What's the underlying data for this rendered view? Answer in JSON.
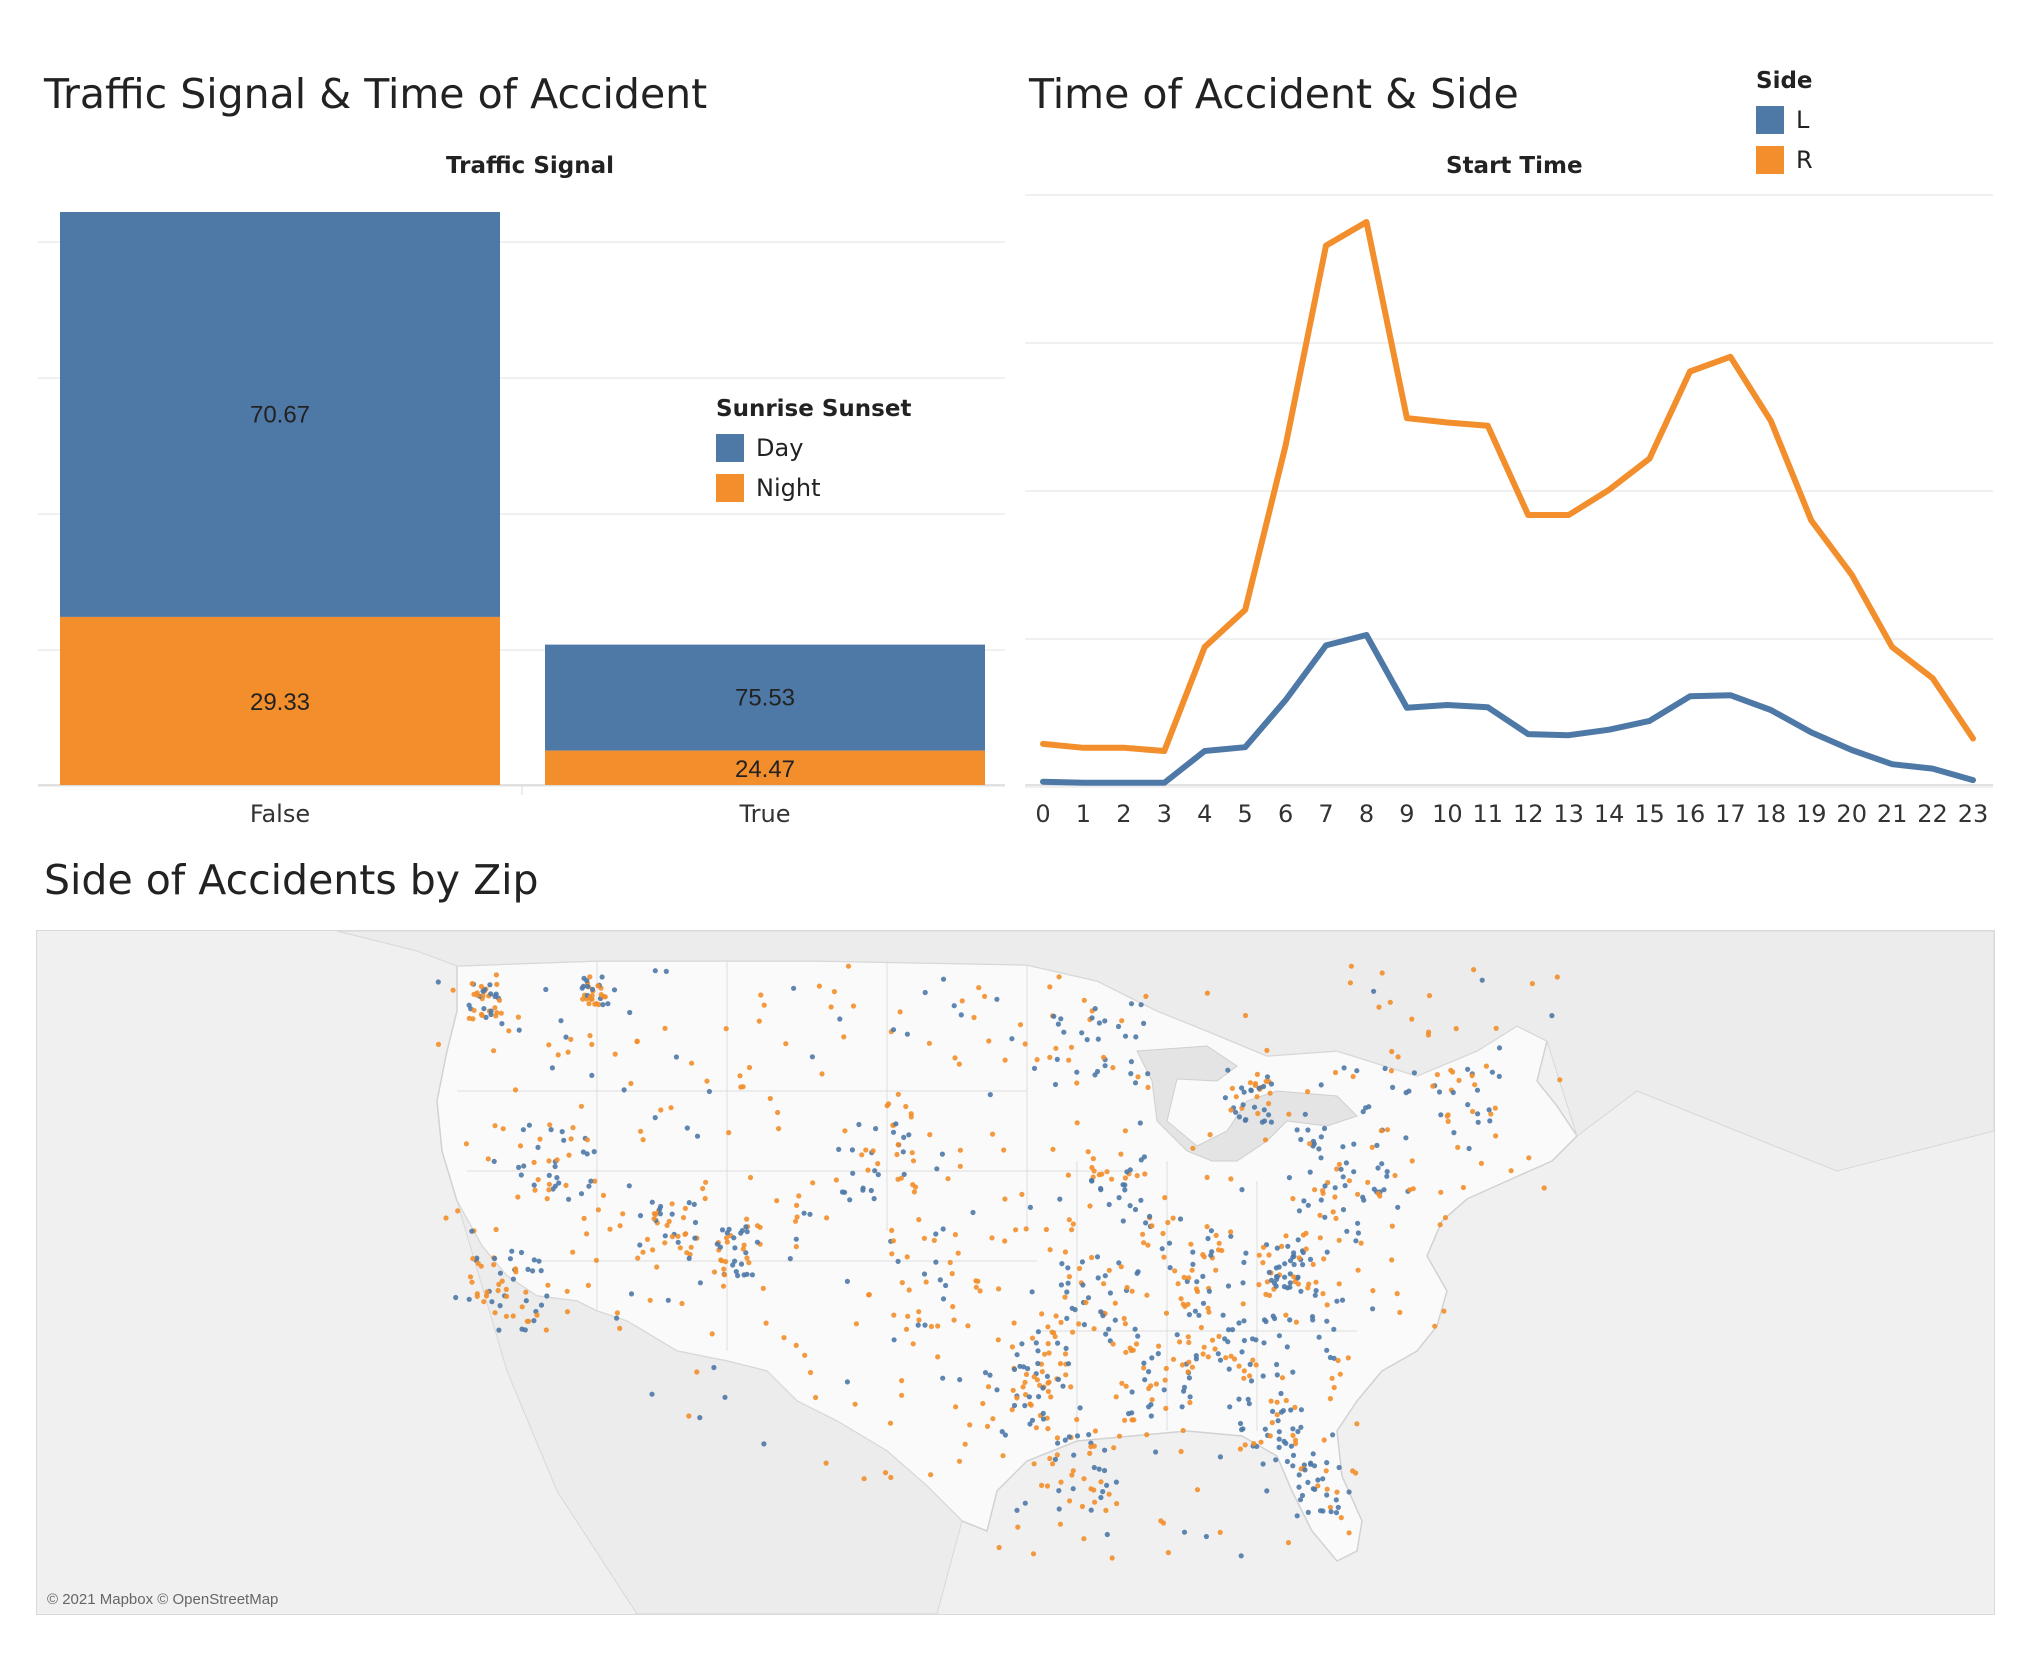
{
  "colors": {
    "day": "#4E79A7",
    "night": "#F28E2B",
    "L": "#4E79A7",
    "R": "#F28E2B",
    "grid": "#ececec"
  },
  "bar_panel": {
    "title": "Traffic Signal & Time of Accident"
  },
  "line_panel": {
    "title": "Time of Accident & Side"
  },
  "map_panel": {
    "title": "Side of Accidents by Zip",
    "credit": "© 2021 Mapbox © OpenStreetMap"
  },
  "chart_data": [
    {
      "type": "bar",
      "stacked": true,
      "title": "Traffic Signal",
      "categories": [
        "False",
        "True"
      ],
      "series": [
        {
          "name": "Day",
          "values": [
            70.67,
            75.53
          ]
        },
        {
          "name": "Night",
          "values": [
            29.33,
            24.47
          ]
        }
      ],
      "legend": {
        "title": "Sunrise Sunset",
        "items": [
          "Day",
          "Night"
        ],
        "placement": "right"
      },
      "bar_totals_relative": [
        1.0,
        0.245
      ],
      "grid": true
    },
    {
      "type": "line",
      "title": "Start Time",
      "x": [
        0,
        1,
        2,
        3,
        4,
        5,
        6,
        7,
        8,
        9,
        10,
        11,
        12,
        13,
        14,
        15,
        16,
        17,
        18,
        19,
        20,
        21,
        22,
        23
      ],
      "series": [
        {
          "name": "R",
          "values": [
            7.5,
            6.8,
            6.8,
            6.2,
            25.2,
            32.0,
            62.0,
            98.5,
            102.8,
            67.0,
            66.2,
            65.6,
            49.3,
            49.3,
            53.9,
            59.6,
            75.5,
            78.2,
            66.5,
            48.3,
            38.4,
            25.2,
            19.5,
            8.5
          ]
        },
        {
          "name": "L",
          "values": [
            0.6,
            0.4,
            0.4,
            0.4,
            6.2,
            6.9,
            15.5,
            25.5,
            27.4,
            14.1,
            14.6,
            14.2,
            9.3,
            9.1,
            10.1,
            11.7,
            16.2,
            16.4,
            13.7,
            9.6,
            6.4,
            3.8,
            3.0,
            0.9
          ]
        }
      ],
      "legend": {
        "title": "Side",
        "items": [
          "L",
          "R"
        ],
        "placement": "top-right"
      },
      "ylim": [
        0,
        105
      ],
      "grid": true
    }
  ]
}
